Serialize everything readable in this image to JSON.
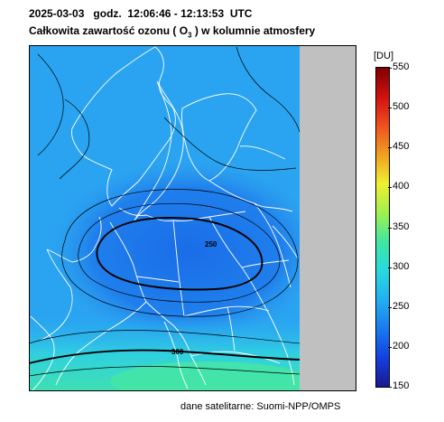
{
  "header": {
    "date": "2025-03-03",
    "time_label": "godz.",
    "time_range": "12:06:46 - 12:13:53",
    "timezone": "UTC",
    "title_prefix": "Całkowita zawartość ozonu (",
    "molecule": "O",
    "molecule_sub": "3",
    "title_suffix": ") w kolumnie atmosfery"
  },
  "map": {
    "contour_labels": [
      "250",
      "300"
    ],
    "no_data_color": "#c0c0c0",
    "coast_color": "#ffffff",
    "contour_color": "#000000"
  },
  "colorbar": {
    "unit": "[DU]",
    "ticks": [
      "550",
      "500",
      "450",
      "400",
      "350",
      "300",
      "250",
      "200",
      "150"
    ],
    "range": [
      150,
      550
    ],
    "colors": [
      "#1a1890",
      "#1340e0",
      "#1a7af0",
      "#22b0f0",
      "#28d8e0",
      "#40e8a0",
      "#a0f050",
      "#f0f030",
      "#f0a020",
      "#f05020",
      "#d01010",
      "#800000"
    ]
  },
  "footer": {
    "source": "dane satelitarne: Suomi-NPP/OMPS"
  }
}
